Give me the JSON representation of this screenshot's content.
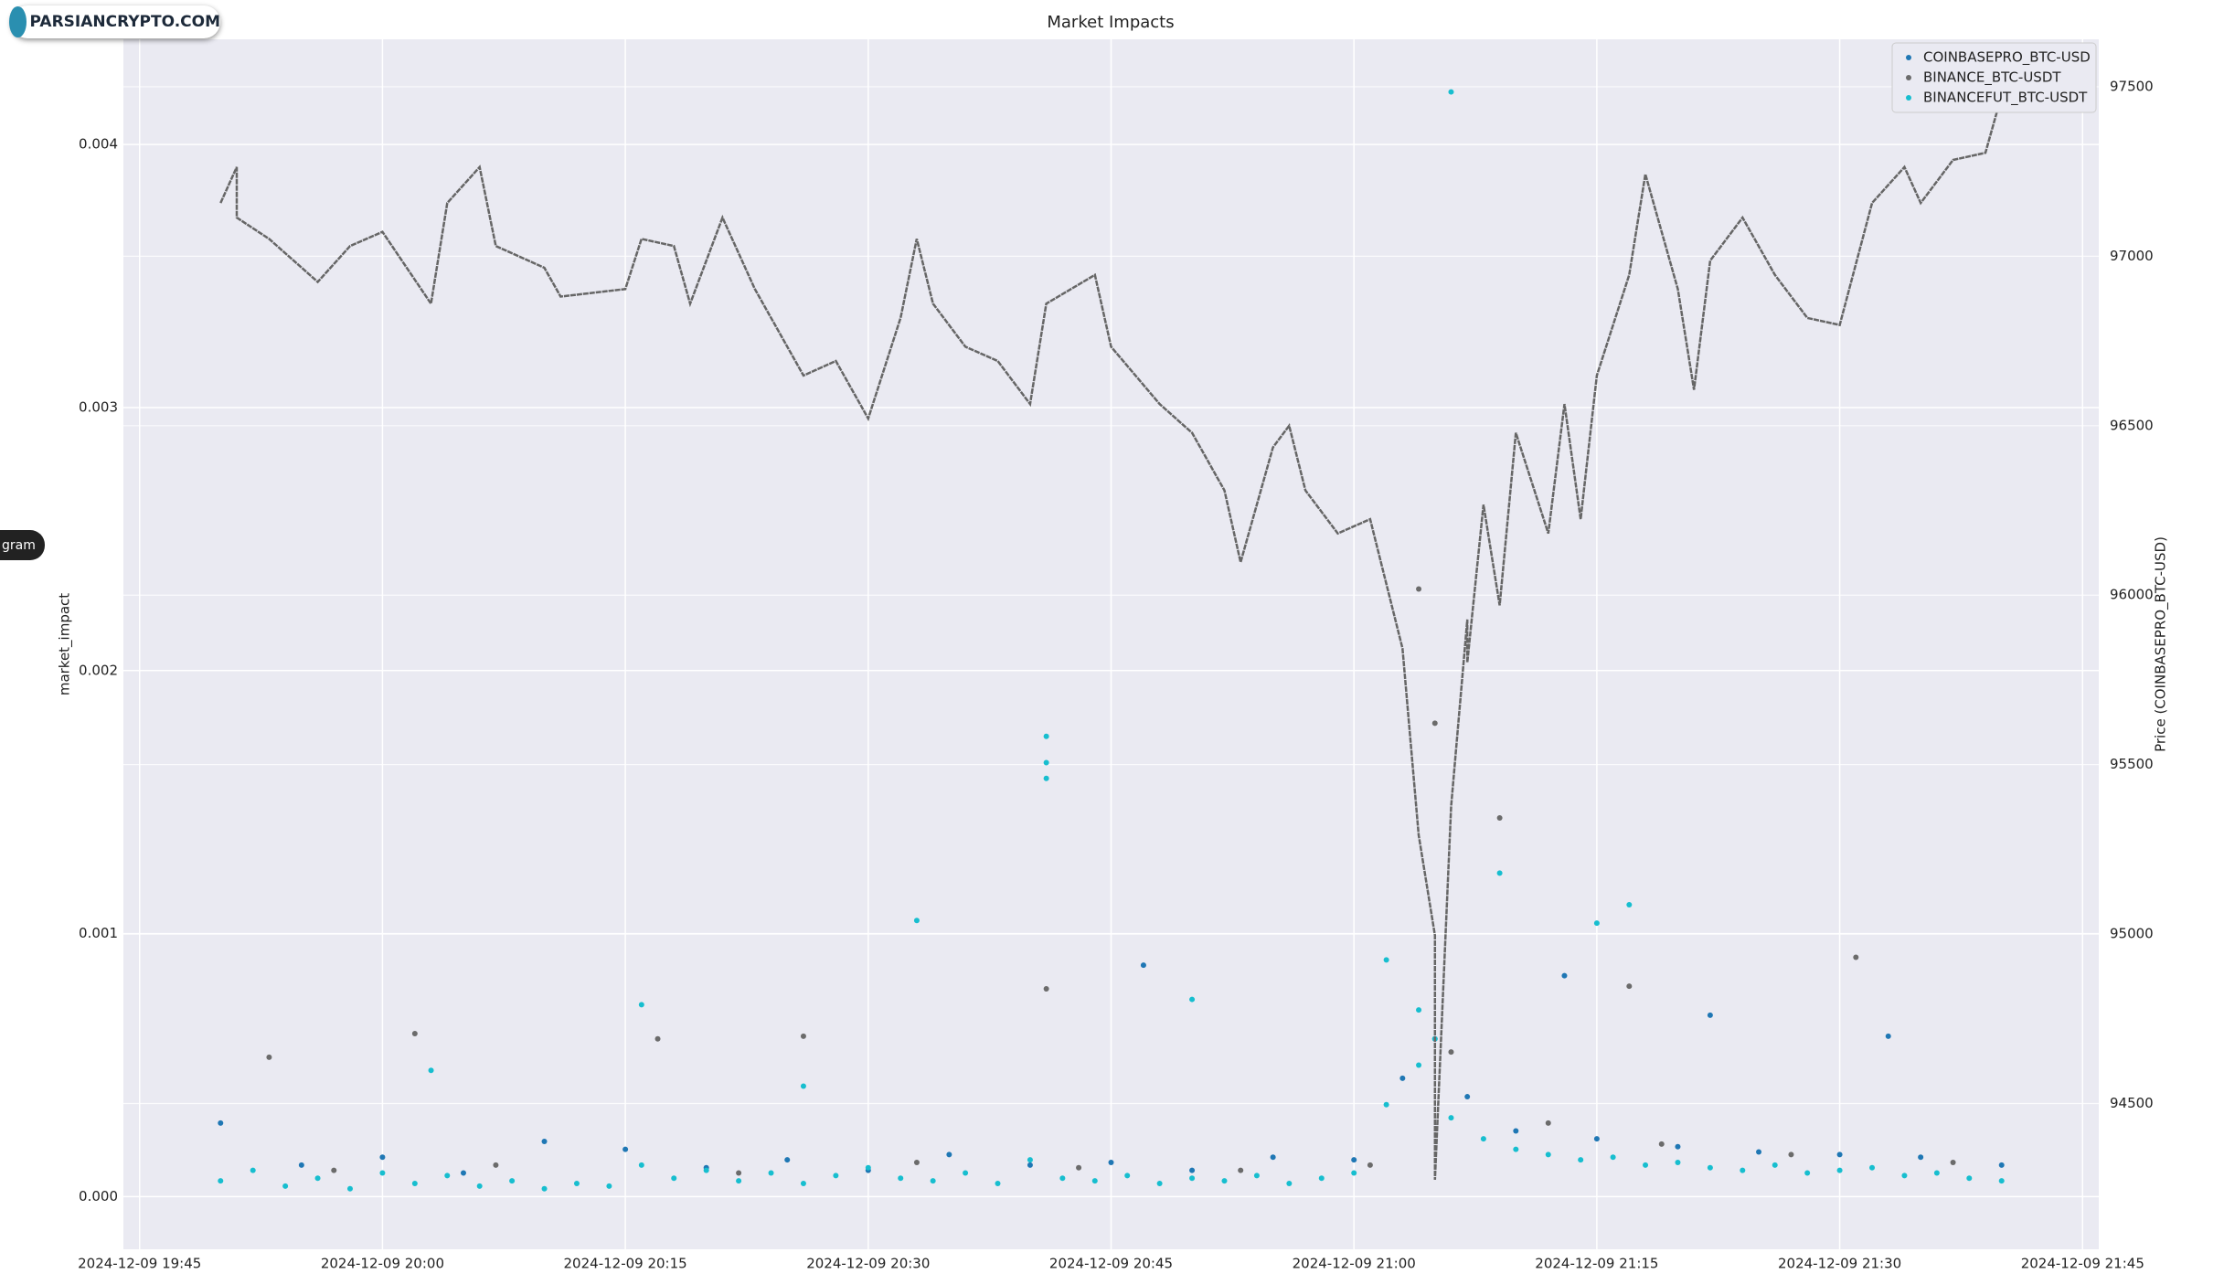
{
  "watermark": "PARSIANCRYPTO.COM",
  "side_tab": "gram",
  "chart_data": {
    "type": "scatter",
    "title": "Market Impacts",
    "y_label": "market_impact",
    "y2_label": "Price (COINBASEPRO_BTC-USD)",
    "xlim": [
      "2024-12-09 19:44",
      "2024-12-09 21:46"
    ],
    "xticks": [
      "2024-12-09 19:45",
      "2024-12-09 20:00",
      "2024-12-09 20:15",
      "2024-12-09 20:30",
      "2024-12-09 20:45",
      "2024-12-09 21:00",
      "2024-12-09 21:15",
      "2024-12-09 21:30",
      "2024-12-09 21:45"
    ],
    "ylim": [
      -0.0002,
      0.0044
    ],
    "yticks": [
      {
        "value": 0,
        "label": "0.000"
      },
      {
        "value": 0.001,
        "label": "0.001"
      },
      {
        "value": 0.002,
        "label": "0.002"
      },
      {
        "value": 0.003,
        "label": "0.003"
      },
      {
        "value": 0.004,
        "label": "0.004"
      }
    ],
    "y2lim": [
      94070,
      97640
    ],
    "y2ticks": [
      94500,
      95000,
      95500,
      96000,
      96500,
      97000,
      97500
    ],
    "grid": true,
    "legend": "upper right",
    "series": [
      {
        "name": "COINBASEPRO_BTC-USD",
        "color": "#1f77b4",
        "x": [
          "2024-12-09 19:50",
          "2024-12-09 20:10",
          "2024-12-09 20:47",
          "2024-12-09 21:13",
          "2024-12-09 21:22",
          "2024-12-09 21:33",
          "2024-12-09 19:55",
          "2024-12-09 20:00",
          "2024-12-09 20:05",
          "2024-12-09 20:15",
          "2024-12-09 20:20",
          "2024-12-09 20:25",
          "2024-12-09 20:30",
          "2024-12-09 20:35",
          "2024-12-09 20:40",
          "2024-12-09 20:45",
          "2024-12-09 20:50",
          "2024-12-09 20:55",
          "2024-12-09 21:00",
          "2024-12-09 21:03",
          "2024-12-09 21:05",
          "2024-12-09 21:07",
          "2024-12-09 21:10",
          "2024-12-09 21:15",
          "2024-12-09 21:20",
          "2024-12-09 21:25",
          "2024-12-09 21:30",
          "2024-12-09 21:35",
          "2024-12-09 21:40"
        ],
        "values": [
          0.00028,
          0.00021,
          0.00088,
          0.00084,
          0.00069,
          0.00061,
          0.00012,
          0.00015,
          9e-05,
          0.00018,
          0.00011,
          0.00014,
          0.0001,
          0.00016,
          0.00012,
          0.00013,
          0.0001,
          0.00015,
          0.00014,
          0.00045,
          0.0006,
          0.00038,
          0.00025,
          0.00022,
          0.00019,
          0.00017,
          0.00016,
          0.00015,
          0.00012
        ]
      },
      {
        "name": "BINANCE_BTC-USDT",
        "color": "#6b6b6b",
        "x": [
          "2024-12-09 20:41",
          "2024-12-09 21:04",
          "2024-12-09 21:05",
          "2024-12-09 21:09",
          "2024-12-09 21:31",
          "2024-12-09 20:02",
          "2024-12-09 20:26",
          "2024-12-09 19:53",
          "2024-12-09 21:17",
          "2024-12-09 20:17",
          "2024-12-09 19:57",
          "2024-12-09 20:07",
          "2024-12-09 20:22",
          "2024-12-09 20:33",
          "2024-12-09 20:43",
          "2024-12-09 20:53",
          "2024-12-09 21:01",
          "2024-12-09 21:06",
          "2024-12-09 21:12",
          "2024-12-09 21:19",
          "2024-12-09 21:27",
          "2024-12-09 21:37"
        ],
        "values": [
          0.00079,
          0.00231,
          0.0018,
          0.00144,
          0.00091,
          0.00062,
          0.00061,
          0.00053,
          0.0008,
          0.0006,
          0.0001,
          0.00012,
          9e-05,
          0.00013,
          0.00011,
          0.0001,
          0.00012,
          0.00055,
          0.00028,
          0.0002,
          0.00016,
          0.00013
        ]
      },
      {
        "name": "BINANCEFUT_BTC-USDT",
        "color": "#17becf",
        "x": [
          "2024-12-09 20:41",
          "2024-12-09 20:41",
          "2024-12-09 20:41",
          "2024-12-09 21:06",
          "2024-12-09 20:33",
          "2024-12-09 21:17",
          "2024-12-09 21:15",
          "2024-12-09 20:16",
          "2024-12-09 20:50",
          "2024-12-09 21:02",
          "2024-12-09 21:04",
          "2024-12-09 21:05",
          "2024-12-09 21:09",
          "2024-12-09 20:03",
          "2024-12-09 20:26",
          "2024-12-09 19:50",
          "2024-12-09 19:52",
          "2024-12-09 19:54",
          "2024-12-09 19:56",
          "2024-12-09 19:58",
          "2024-12-09 20:00",
          "2024-12-09 20:02",
          "2024-12-09 20:04",
          "2024-12-09 20:06",
          "2024-12-09 20:08",
          "2024-12-09 20:10",
          "2024-12-09 20:12",
          "2024-12-09 20:14",
          "2024-12-09 20:16",
          "2024-12-09 20:18",
          "2024-12-09 20:20",
          "2024-12-09 20:22",
          "2024-12-09 20:24",
          "2024-12-09 20:26",
          "2024-12-09 20:28",
          "2024-12-09 20:30",
          "2024-12-09 20:32",
          "2024-12-09 20:34",
          "2024-12-09 20:36",
          "2024-12-09 20:38",
          "2024-12-09 20:40",
          "2024-12-09 20:42",
          "2024-12-09 20:44",
          "2024-12-09 20:46",
          "2024-12-09 20:48",
          "2024-12-09 20:50",
          "2024-12-09 20:52",
          "2024-12-09 20:54",
          "2024-12-09 20:56",
          "2024-12-09 20:58",
          "2024-12-09 21:00",
          "2024-12-09 21:02",
          "2024-12-09 21:04",
          "2024-12-09 21:06",
          "2024-12-09 21:08",
          "2024-12-09 21:10",
          "2024-12-09 21:12",
          "2024-12-09 21:14",
          "2024-12-09 21:16",
          "2024-12-09 21:18",
          "2024-12-09 21:20",
          "2024-12-09 21:22",
          "2024-12-09 21:24",
          "2024-12-09 21:26",
          "2024-12-09 21:28",
          "2024-12-09 21:30",
          "2024-12-09 21:32",
          "2024-12-09 21:34",
          "2024-12-09 21:36",
          "2024-12-09 21:38",
          "2024-12-09 21:40"
        ],
        "values": [
          0.00175,
          0.00165,
          0.00159,
          0.0042,
          0.00105,
          0.00111,
          0.00104,
          0.00073,
          0.00075,
          0.0009,
          0.00071,
          0.0006,
          0.00123,
          0.00048,
          0.00042,
          6e-05,
          0.0001,
          4e-05,
          7e-05,
          3e-05,
          9e-05,
          5e-05,
          8e-05,
          4e-05,
          6e-05,
          3e-05,
          5e-05,
          4e-05,
          0.00012,
          7e-05,
          0.0001,
          6e-05,
          9e-05,
          5e-05,
          8e-05,
          0.00011,
          7e-05,
          6e-05,
          9e-05,
          5e-05,
          0.00014,
          7e-05,
          6e-05,
          8e-05,
          5e-05,
          7e-05,
          6e-05,
          8e-05,
          5e-05,
          7e-05,
          9e-05,
          0.00035,
          0.0005,
          0.0003,
          0.00022,
          0.00018,
          0.00016,
          0.00014,
          0.00015,
          0.00012,
          0.00013,
          0.00011,
          0.0001,
          0.00012,
          9e-05,
          0.0001,
          0.00011,
          8e-05,
          9e-05,
          7e-05,
          6e-05
        ]
      }
    ],
    "price": {
      "axis": "y2",
      "color": "#666666",
      "x": [
        "2024-12-09 19:50",
        "2024-12-09 19:51",
        "2024-12-09 19:51",
        "2024-12-09 19:53",
        "2024-12-09 19:56",
        "2024-12-09 19:58",
        "2024-12-09 20:00",
        "2024-12-09 20:03",
        "2024-12-09 20:04",
        "2024-12-09 20:06",
        "2024-12-09 20:07",
        "2024-12-09 20:10",
        "2024-12-09 20:11",
        "2024-12-09 20:15",
        "2024-12-09 20:16",
        "2024-12-09 20:18",
        "2024-12-09 20:19",
        "2024-12-09 20:21",
        "2024-12-09 20:23",
        "2024-12-09 20:26",
        "2024-12-09 20:28",
        "2024-12-09 20:30",
        "2024-12-09 20:32",
        "2024-12-09 20:33",
        "2024-12-09 20:34",
        "2024-12-09 20:36",
        "2024-12-09 20:38",
        "2024-12-09 20:40",
        "2024-12-09 20:41",
        "2024-12-09 20:44",
        "2024-12-09 20:45",
        "2024-12-09 20:48",
        "2024-12-09 20:50",
        "2024-12-09 20:52",
        "2024-12-09 20:53",
        "2024-12-09 20:55",
        "2024-12-09 20:56",
        "2024-12-09 20:57",
        "2024-12-09 20:59",
        "2024-12-09 21:01",
        "2024-12-09 21:03",
        "2024-12-09 21:04",
        "2024-12-09 21:05",
        "2024-12-09 21:05",
        "2024-12-09 21:06",
        "2024-12-09 21:07",
        "2024-12-09 21:07",
        "2024-12-09 21:08",
        "2024-12-09 21:09",
        "2024-12-09 21:10",
        "2024-12-09 21:12",
        "2024-12-09 21:13",
        "2024-12-09 21:14",
        "2024-12-09 21:15",
        "2024-12-09 21:17",
        "2024-12-09 21:18",
        "2024-12-09 21:20",
        "2024-12-09 21:21",
        "2024-12-09 21:22",
        "2024-12-09 21:24",
        "2024-12-09 21:26",
        "2024-12-09 21:28",
        "2024-12-09 21:30",
        "2024-12-09 21:32",
        "2024-12-09 21:34",
        "2024-12-09 21:35",
        "2024-12-09 21:37",
        "2024-12-09 21:39",
        "2024-12-09 21:40"
      ],
      "values": [
        97157,
        97263,
        97114,
        97051,
        96924,
        97030,
        97072,
        96860,
        97157,
        97263,
        97030,
        96966,
        96881,
        96903,
        97051,
        97030,
        96860,
        97114,
        96903,
        96648,
        96691,
        96521,
        96818,
        97051,
        96860,
        96733,
        96691,
        96564,
        96860,
        96945,
        96733,
        96564,
        96479,
        96309,
        96097,
        96436,
        96500,
        96309,
        96182,
        96224,
        95843,
        95292,
        94996,
        94275,
        95377,
        95928,
        95801,
        96267,
        95970,
        96479,
        96182,
        96564,
        96224,
        96648,
        96945,
        97242,
        96903,
        96606,
        96987,
        97114,
        96945,
        96818,
        96797,
        97157,
        97263,
        97157,
        97284,
        97305,
        97475
      ]
    }
  }
}
